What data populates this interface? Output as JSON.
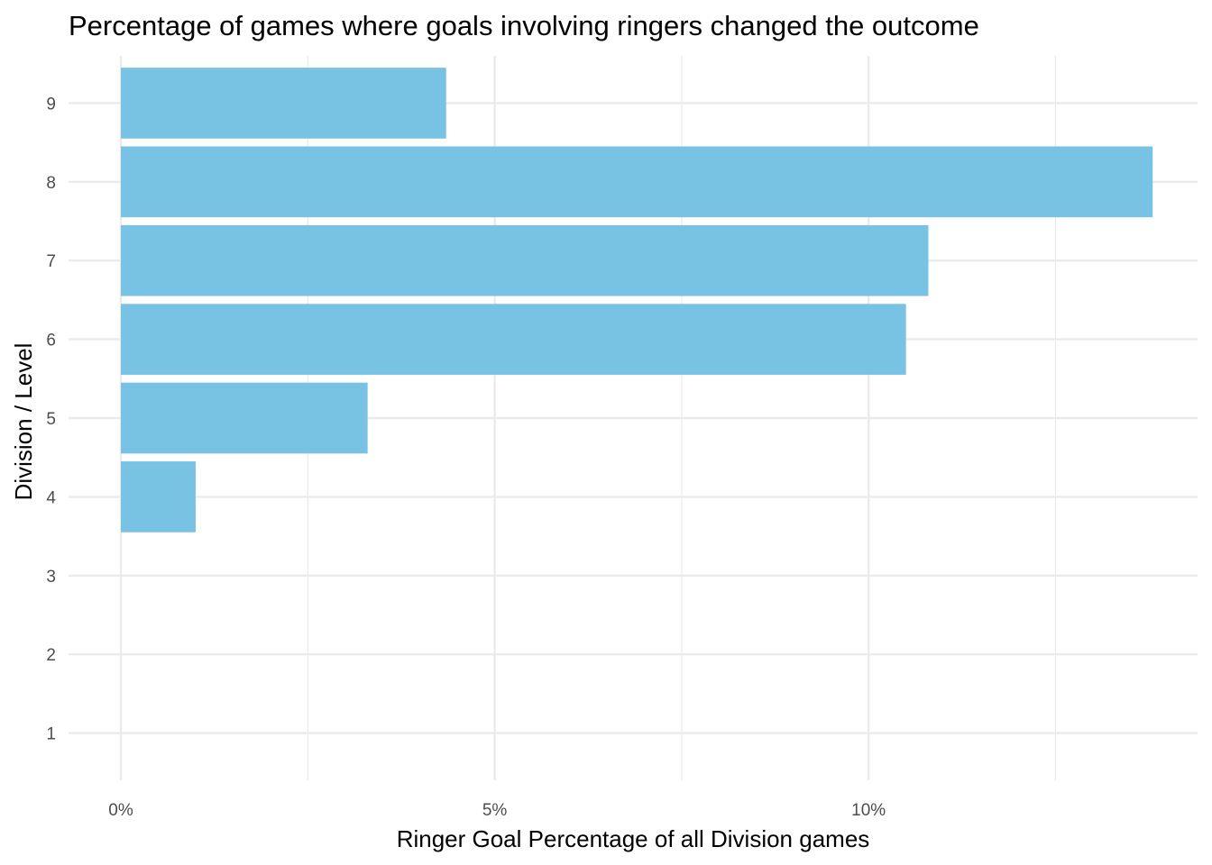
{
  "chart_data": {
    "type": "bar",
    "orientation": "horizontal",
    "title": "Percentage of games where goals involving ringers changed the outcome",
    "xlabel": "Ringer Goal Percentage of all Division games",
    "ylabel": "Division / Level",
    "categories": [
      "1",
      "2",
      "3",
      "4",
      "5",
      "6",
      "7",
      "8",
      "9"
    ],
    "values": [
      0,
      0,
      0,
      1.0,
      3.3,
      10.5,
      10.8,
      13.8,
      4.35
    ],
    "x_ticks": [
      0,
      5,
      10
    ],
    "x_tick_labels": [
      "0%",
      "5%",
      "10%"
    ],
    "xlim": [
      -0.7,
      14.4
    ],
    "grid": true,
    "legend": "none",
    "bar_color": "#78C2E4",
    "grid_color": "#EBEBEB"
  }
}
